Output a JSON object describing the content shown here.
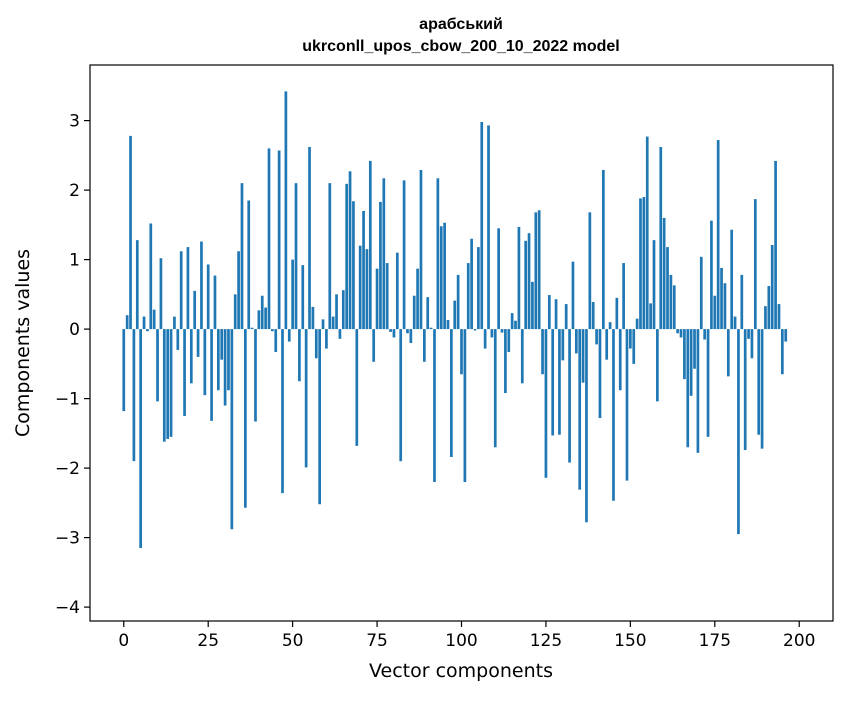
{
  "chart_data": {
    "type": "bar",
    "title_line1": "арабський",
    "title_line2": "ukrconll_upos_cbow_200_10_2022 model",
    "xlabel": "Vector components",
    "ylabel": "Components values",
    "xlim": [
      -10,
      210
    ],
    "ylim": [
      -4.2,
      3.8
    ],
    "xticks": [
      0,
      25,
      50,
      75,
      100,
      125,
      150,
      175,
      200
    ],
    "xtick_labels": [
      "0",
      "25",
      "50",
      "75",
      "100",
      "125",
      "150",
      "175",
      "200"
    ],
    "yticks": [
      -4,
      -3,
      -2,
      -1,
      0,
      1,
      2,
      3
    ],
    "ytick_labels": [
      "−4",
      "−3",
      "−2",
      "−1",
      "0",
      "1",
      "2",
      "3"
    ],
    "bar_color": "#1f77b4",
    "grid": false,
    "values": [
      -1.18,
      0.2,
      2.78,
      -1.9,
      1.28,
      -3.15,
      0.18,
      -0.03,
      1.52,
      0.28,
      -1.04,
      1.02,
      -1.62,
      -1.58,
      -1.55,
      0.18,
      -0.3,
      1.12,
      -1.25,
      1.18,
      -0.78,
      0.55,
      -0.4,
      1.26,
      -0.95,
      0.93,
      -1.32,
      0.77,
      -0.88,
      -0.44,
      -1.1,
      -0.88,
      -2.88,
      0.5,
      1.12,
      2.1,
      -2.57,
      1.85,
      0.02,
      -1.33,
      0.27,
      0.48,
      0.31,
      2.6,
      -0.03,
      -0.33,
      2.57,
      -2.36,
      3.42,
      -0.18,
      1.0,
      2.1,
      -0.75,
      0.92,
      -1.99,
      2.62,
      0.32,
      -0.42,
      -2.52,
      0.14,
      -0.28,
      2.1,
      0.18,
      0.5,
      -0.14,
      0.56,
      2.09,
      2.27,
      1.84,
      -1.68,
      1.2,
      1.7,
      1.15,
      2.42,
      -0.47,
      0.87,
      1.83,
      2.17,
      0.95,
      -0.04,
      -0.12,
      1.1,
      -1.9,
      2.14,
      -0.06,
      -0.2,
      0.48,
      0.87,
      2.29,
      -0.47,
      0.46,
      0.02,
      -2.2,
      2.17,
      1.48,
      1.53,
      0.13,
      -1.84,
      0.41,
      0.78,
      -0.65,
      -2.2,
      0.95,
      1.3,
      -0.02,
      1.18,
      2.98,
      -0.28,
      2.93,
      -0.12,
      -1.7,
      1.45,
      -0.05,
      -0.92,
      -0.33,
      0.23,
      0.12,
      1.47,
      -0.78,
      1.27,
      1.38,
      0.68,
      1.68,
      1.71,
      -0.65,
      -2.14,
      0.49,
      -1.53,
      0.43,
      -1.52,
      -0.45,
      0.36,
      -1.92,
      0.97,
      -0.35,
      -2.31,
      -0.77,
      -2.78,
      1.68,
      0.39,
      -0.22,
      -1.28,
      2.29,
      -0.44,
      0.1,
      -2.47,
      0.45,
      -0.88,
      0.95,
      -2.18,
      -0.28,
      -0.5,
      0.15,
      1.88,
      1.9,
      2.77,
      0.37,
      1.28,
      -1.04,
      2.62,
      1.6,
      1.18,
      0.78,
      0.63,
      -0.06,
      -0.12,
      -0.72,
      -1.7,
      -0.96,
      -0.57,
      -1.78,
      1.04,
      -0.15,
      -1.55,
      1.56,
      0.48,
      2.72,
      0.88,
      0.66,
      -0.68,
      1.43,
      0.18,
      -2.95,
      0.78,
      -1.74,
      -0.14,
      -0.42,
      1.87,
      -1.52,
      -1.72,
      0.33,
      0.62,
      1.21,
      2.42,
      0.36,
      -0.65,
      -0.18
    ]
  }
}
